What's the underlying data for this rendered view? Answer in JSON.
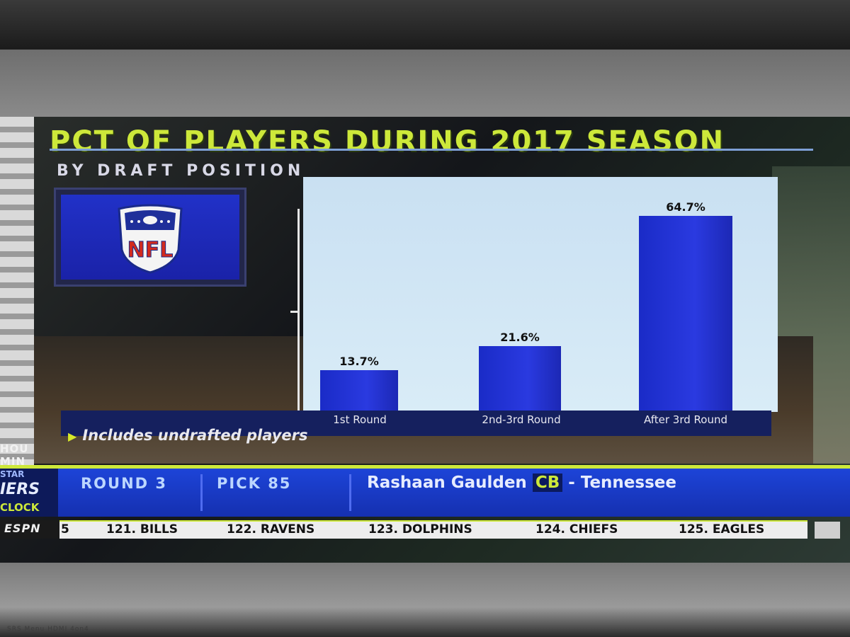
{
  "chart_data": {
    "type": "bar",
    "title": "PCT OF PLAYERS DURING 2017 SEASON",
    "subtitle": "BY DRAFT POSITION",
    "categories": [
      "1st Round",
      "2nd-3rd Round",
      "After 3rd Round"
    ],
    "values": [
      13.7,
      21.6,
      64.7
    ],
    "value_labels": [
      "13.7%",
      "21.6%",
      "64.7%"
    ],
    "ylim": [
      0,
      70
    ],
    "grid": false,
    "footnote": "Includes undrafted players",
    "colors": {
      "bar": "#2233d4",
      "plot_background": "#cfe5f4",
      "title": "#cde83a"
    }
  },
  "logo": {
    "text": "NFL"
  },
  "left_caption": [
    "HOU",
    "MIN",
    "STAR",
    "IERS",
    "CLOCK"
  ],
  "ticker": {
    "round": "ROUND 3",
    "pick": "PICK 85",
    "player_name": "Rashaan Gaulden",
    "position": "CB",
    "team": "- Tennessee"
  },
  "bottom_ticker": {
    "network": "ESPN",
    "lead": "5",
    "items": [
      "121. BILLS",
      "122. RAVENS",
      "123. DOLPHINS",
      "124. CHIEFS",
      "125. EAGLES"
    ]
  },
  "tv_label": "SRS  Menu  HDMI  4on4"
}
